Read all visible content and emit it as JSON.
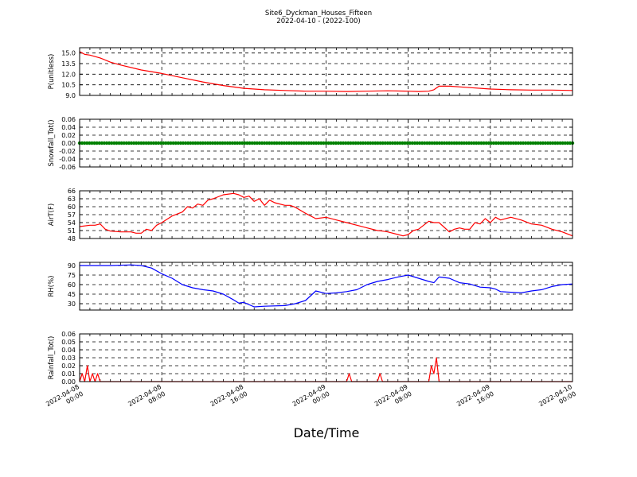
{
  "figure": {
    "title_line1": "Site6_Dyckman_Houses_Fifteen",
    "title_line2": "2022-04-10 - (2022-100)",
    "xlabel": "Date/Time"
  },
  "x_axis": {
    "start": "2022-04-08 00:00",
    "end": "2022-04-10 00:00",
    "tick_labels": [
      [
        "2022-04-08",
        "00:00"
      ],
      [
        "2022-04-08",
        "08:00"
      ],
      [
        "2022-04-08",
        "16:00"
      ],
      [
        "2022-04-09",
        "00:00"
      ],
      [
        "2022-04-09",
        "08:00"
      ],
      [
        "2022-04-09",
        "16:00"
      ],
      [
        "2022-04-10",
        "00:00"
      ]
    ]
  },
  "chart_data": [
    {
      "type": "line",
      "ylabel": "P(unitless)",
      "color": "#ff0000",
      "ylim": [
        9.0,
        15.75
      ],
      "yticks": [
        "15.0",
        "13.5",
        "12.0",
        "10.5",
        "9.0"
      ],
      "ytick_values": [
        15.0,
        13.5,
        12.0,
        10.5,
        9.0
      ],
      "grid": true,
      "x_hours": [
        0,
        0.5,
        1,
        2,
        3,
        4,
        6,
        8,
        10,
        12,
        14,
        16,
        18,
        20,
        22,
        24,
        26,
        28,
        30,
        32,
        33,
        34,
        34.5,
        35,
        36,
        38,
        40,
        42,
        44,
        46,
        48
      ],
      "y": [
        15.2,
        14.8,
        14.7,
        14.3,
        13.7,
        13.3,
        12.6,
        12.1,
        11.5,
        10.9,
        10.4,
        10.0,
        9.8,
        9.7,
        9.6,
        9.6,
        9.55,
        9.6,
        9.65,
        9.6,
        9.55,
        9.6,
        9.8,
        10.3,
        10.3,
        10.1,
        9.9,
        9.8,
        9.75,
        9.75,
        9.7
      ]
    },
    {
      "type": "scatter",
      "ylabel": "Snowfall_Tot()",
      "color": "#008000",
      "ylim": [
        -0.06,
        0.06
      ],
      "yticks": [
        "0.06",
        "0.04",
        "0.02",
        "0.00",
        "-0.02",
        "-0.04",
        "-0.06"
      ],
      "ytick_values": [
        0.06,
        0.04,
        0.02,
        0.0,
        -0.02,
        -0.04,
        -0.06
      ],
      "grid": true,
      "x_range_hours": [
        0,
        48
      ],
      "value": 0.0
    },
    {
      "type": "line",
      "ylabel": "AirT(F)",
      "color": "#ff0000",
      "ylim": [
        48,
        66
      ],
      "yticks": [
        "66",
        "63",
        "60",
        "57",
        "54",
        "51",
        "48"
      ],
      "ytick_values": [
        66,
        63,
        60,
        57,
        54,
        51,
        48
      ],
      "grid": true,
      "x_hours": [
        0,
        1,
        1.5,
        2,
        2.5,
        3,
        4,
        5,
        5.5,
        6,
        6.5,
        7,
        7.5,
        8,
        9,
        10,
        10.5,
        11,
        11.5,
        12,
        12.5,
        13,
        14,
        15,
        15.5,
        16,
        16.5,
        17,
        17.5,
        18,
        18.5,
        19,
        20,
        20.5,
        21,
        22,
        23,
        24,
        25,
        26,
        27,
        28,
        29,
        29.5,
        30,
        31,
        31.5,
        32,
        32.5,
        33,
        34,
        34.5,
        35,
        36,
        36.5,
        37,
        37.5,
        38,
        38.5,
        39,
        39.5,
        40,
        40.5,
        41,
        42,
        43,
        44,
        45,
        46,
        47,
        48
      ],
      "y": [
        52.5,
        53,
        53,
        53.5,
        51.5,
        50.8,
        50.5,
        50.5,
        50,
        50,
        51.5,
        51,
        53,
        54,
        56.5,
        58,
        60,
        59.5,
        61,
        60.5,
        62.5,
        63,
        64.5,
        65,
        64.5,
        63.5,
        64,
        62,
        63,
        60.5,
        62.5,
        61.5,
        60.5,
        60.5,
        59.8,
        57.5,
        55.5,
        56,
        55,
        54,
        53,
        52,
        51,
        50.8,
        50.5,
        49.5,
        49,
        49.5,
        51,
        51.5,
        54.5,
        54,
        54,
        50.5,
        51.5,
        52,
        51.5,
        51.5,
        54,
        53.5,
        55.5,
        54,
        56,
        55,
        56,
        55,
        53.5,
        53,
        51.5,
        50.5,
        49
      ]
    },
    {
      "type": "line",
      "ylabel": "RH(%)",
      "color": "#0000ff",
      "ylim": [
        20,
        95
      ],
      "yticks": [
        "90",
        "75",
        "60",
        "45",
        "30"
      ],
      "ytick_values": [
        90,
        75,
        60,
        45,
        30
      ],
      "grid": true,
      "x_hours": [
        0,
        3,
        5,
        6,
        7,
        8,
        9,
        10,
        11,
        12,
        13,
        14,
        15,
        15.5,
        16,
        17,
        18,
        20,
        21,
        22,
        23,
        24,
        25,
        26,
        27,
        28,
        29,
        30,
        31,
        32,
        33,
        34,
        34.5,
        35,
        36,
        37,
        38,
        39,
        40,
        40.5,
        41,
        42,
        43,
        44,
        45,
        46,
        47,
        48
      ],
      "y": [
        90,
        90,
        91,
        90,
        86,
        77,
        70,
        60,
        55,
        52,
        50,
        45,
        36,
        31,
        32,
        25,
        26,
        27,
        30,
        35,
        50,
        46,
        47,
        49,
        52,
        60,
        65,
        68,
        72,
        75,
        70,
        65,
        63,
        72,
        70,
        63,
        61,
        56,
        55,
        53,
        49,
        48,
        47,
        50,
        52,
        57,
        60,
        61
      ]
    },
    {
      "type": "line",
      "ylabel": "Rainfall_Tot()",
      "color": "#ff0000",
      "ylim": [
        0.0,
        0.06
      ],
      "yticks": [
        "0.06",
        "0.05",
        "0.04",
        "0.03",
        "0.02",
        "0.01",
        "0.00"
      ],
      "ytick_values": [
        0.06,
        0.05,
        0.04,
        0.03,
        0.02,
        0.01,
        0.0
      ],
      "grid": true,
      "x_hours": [
        0,
        0.25,
        0.5,
        0.75,
        1.0,
        1.25,
        1.5,
        1.75,
        2.0,
        26.0,
        26.25,
        26.5,
        29.0,
        29.25,
        29.5,
        34.0,
        34.25,
        34.5,
        34.75,
        35.0,
        48
      ],
      "y": [
        0.0,
        0.01,
        0.0,
        0.02,
        0.0,
        0.01,
        0.0,
        0.01,
        0.0,
        0.0,
        0.01,
        0.0,
        0.0,
        0.01,
        0.0,
        0.0,
        0.02,
        0.01,
        0.03,
        0.0,
        0.0
      ]
    }
  ]
}
